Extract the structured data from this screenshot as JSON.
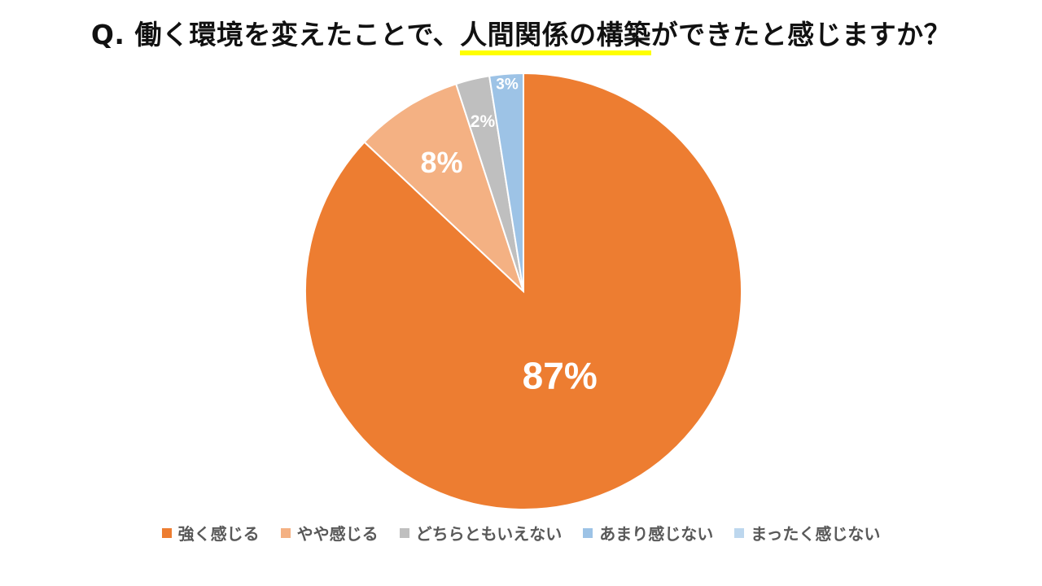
{
  "title": {
    "prefix": "Q. 働く環境を変えたことで、",
    "highlight": "人間関係の構築",
    "suffix": "ができたと感じますか？",
    "highlight_color": "#FFFF00"
  },
  "chart_data": {
    "type": "pie",
    "start_angle_deg": 0,
    "direction": "clockwise",
    "slices": [
      {
        "label": "強く感じる",
        "value": 87,
        "display": "87%",
        "color": "#ED7D31",
        "label_color": "#FFFFFF"
      },
      {
        "label": "やや感じる",
        "value": 8,
        "display": "8%",
        "color": "#F4B183",
        "label_color": "#FFFFFF"
      },
      {
        "label": "どちらともいえない",
        "value": 2.5,
        "display": "2%",
        "color": "#BFBFBF",
        "label_color": "#FFFFFF"
      },
      {
        "label": "あまり感じない",
        "value": 2.5,
        "display": "3%",
        "color": "#9DC3E6",
        "label_color": "#FFFFFF"
      },
      {
        "label": "まったく感じない",
        "value": 0,
        "display": "",
        "color": "#BDD7EE",
        "label_color": "#FFFFFF"
      }
    ],
    "legend": {
      "position": "bottom"
    }
  }
}
